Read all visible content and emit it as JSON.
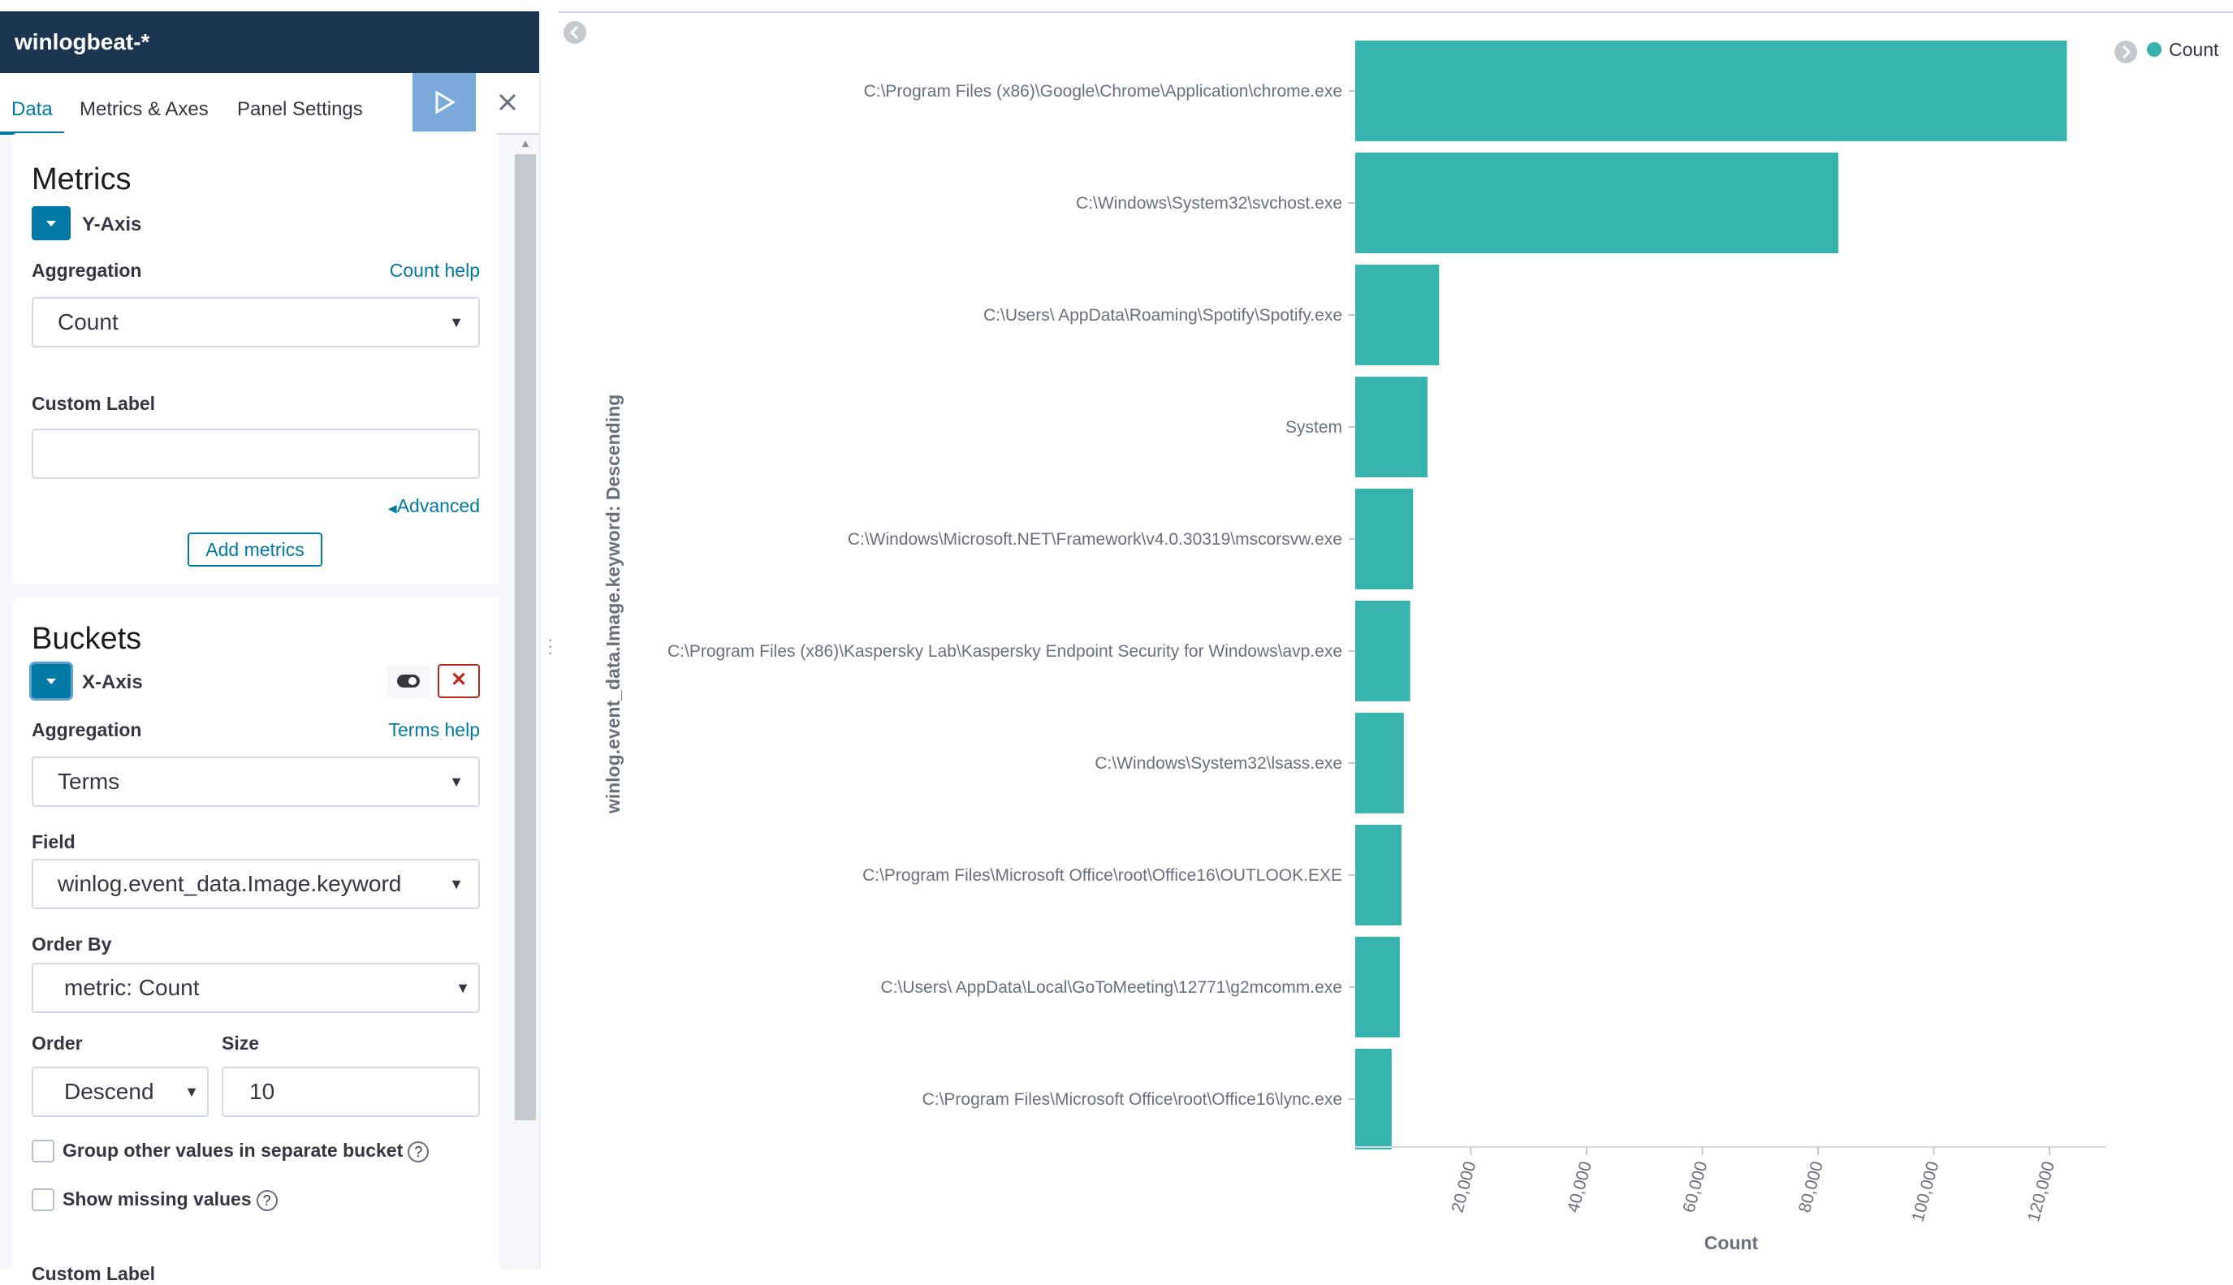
{
  "index_pattern": "winlogbeat-*",
  "tabs": [
    "Data",
    "Metrics & Axes",
    "Panel Settings"
  ],
  "metrics": {
    "title": "Metrics",
    "axis_label": "Y-Axis",
    "aggregation_label": "Aggregation",
    "aggregation_help": "Count help",
    "aggregation_value": "Count",
    "custom_label_label": "Custom Label",
    "custom_label_value": "",
    "advanced_link": "Advanced",
    "add_button": "Add metrics"
  },
  "buckets": {
    "title": "Buckets",
    "axis_label": "X-Axis",
    "aggregation_label": "Aggregation",
    "aggregation_help": "Terms help",
    "aggregation_value": "Terms",
    "field_label": "Field",
    "field_value": "winlog.event_data.Image.keyword",
    "order_by_label": "Order By",
    "order_by_value": "metric: Count",
    "order_label": "Order",
    "order_value": "Descend",
    "size_label": "Size",
    "size_value": "10",
    "group_other_label": "Group other values in separate bucket",
    "show_missing_label": "Show missing values",
    "custom_label_label": "Custom Label"
  },
  "colors": {
    "bar": "#36b3ac",
    "header": "#1b3550",
    "accent": "#0079a5",
    "apply": "#79aad9",
    "danger": "#bd271e"
  },
  "chart_data": {
    "type": "bar",
    "orientation": "horizontal",
    "categories": [
      "C:\\Program Files (x86)\\Google\\Chrome\\Application\\chrome.exe",
      "C:\\Windows\\System32\\svchost.exe",
      "C:\\Users\\ AppData\\Roaming\\Spotify\\Spotify.exe",
      "System",
      "C:\\Windows\\Microsoft.NET\\Framework\\v4.0.30319\\mscorsvw.exe",
      "C:\\Program Files (x86)\\Kaspersky Lab\\Kaspersky Endpoint Security for Windows\\avp.exe",
      "C:\\Windows\\System32\\lsass.exe",
      "C:\\Program Files\\Microsoft Office\\root\\Office16\\OUTLOOK.EXE",
      "C:\\Users\\ AppData\\Local\\GoToMeeting\\12771\\g2mcomm.exe",
      "C:\\Program Files\\Microsoft Office\\root\\Office16\\lync.exe"
    ],
    "values": [
      123000,
      83500,
      14500,
      12500,
      10000,
      9500,
      8400,
      8000,
      7700,
      6300
    ],
    "series": [
      {
        "name": "Count",
        "values": [
          123000,
          83500,
          14500,
          12500,
          10000,
          9500,
          8400,
          8000,
          7700,
          6300
        ]
      }
    ],
    "xlabel": "Count",
    "ylabel": "winlog.event_data.Image.keyword: Descending",
    "xlim": [
      0,
      130000
    ],
    "xticks": [
      "20,000",
      "40,000",
      "60,000",
      "80,000",
      "100,000",
      "120,000"
    ],
    "xtick_values": [
      20000,
      40000,
      60000,
      80000,
      100000,
      120000
    ],
    "legend": "top-right",
    "grid": false
  }
}
